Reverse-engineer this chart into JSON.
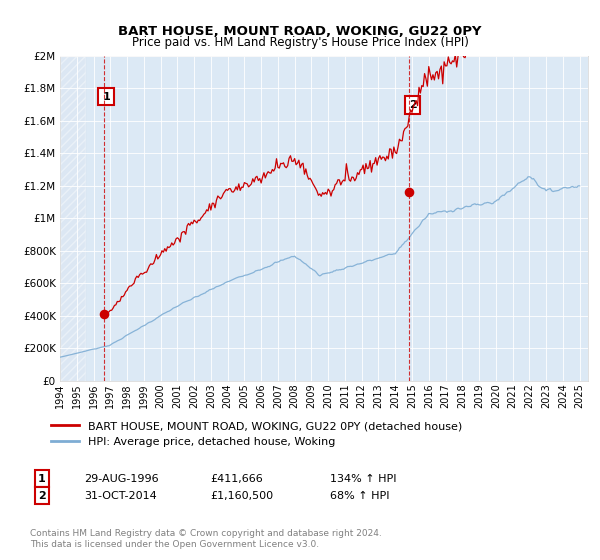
{
  "title": "BART HOUSE, MOUNT ROAD, WOKING, GU22 0PY",
  "subtitle": "Price paid vs. HM Land Registry's House Price Index (HPI)",
  "legend_line1": "BART HOUSE, MOUNT ROAD, WOKING, GU22 0PY (detached house)",
  "legend_line2": "HPI: Average price, detached house, Woking",
  "sale1_label": "1",
  "sale1_date": "29-AUG-1996",
  "sale1_price": 411666,
  "sale1_hpi": "134% ↑ HPI",
  "sale1_year": 1996.65,
  "sale2_label": "2",
  "sale2_date": "31-OCT-2014",
  "sale2_price": 1160500,
  "sale2_hpi": "68% ↑ HPI",
  "sale2_year": 2014.83,
  "red_color": "#cc0000",
  "blue_color": "#7eadd4",
  "bg_color": "#dce9f5",
  "ylim_min": 0,
  "ylim_max": 2000000,
  "footnote": "Contains HM Land Registry data © Crown copyright and database right 2024.\nThis data is licensed under the Open Government Licence v3.0."
}
